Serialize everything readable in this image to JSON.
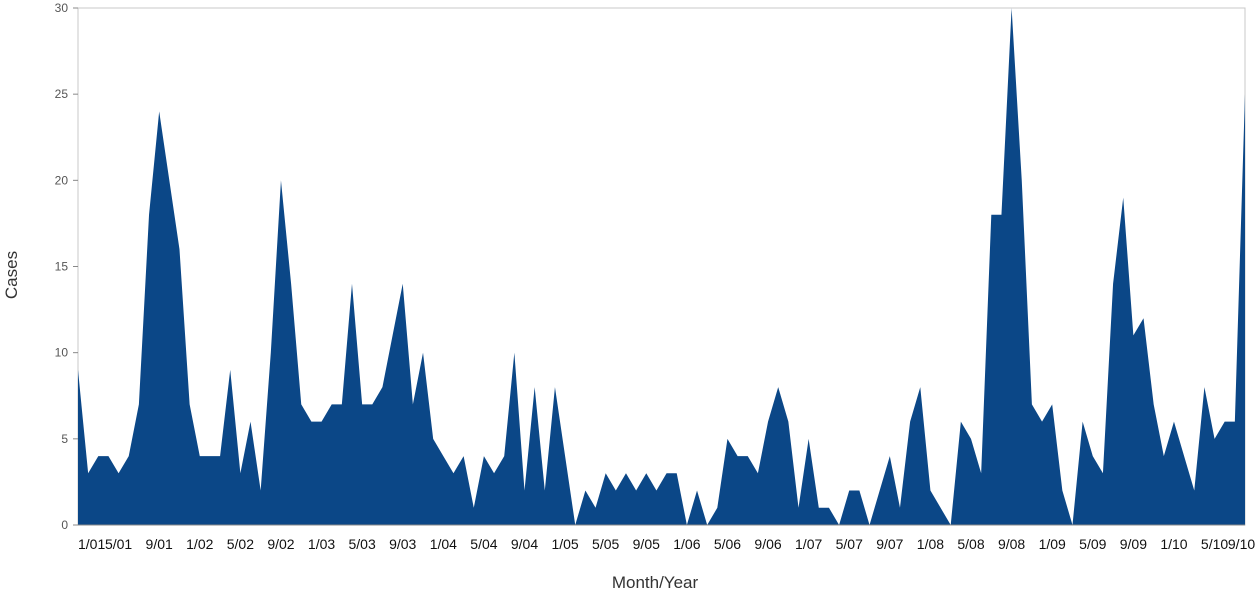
{
  "chart_data": {
    "type": "area",
    "xlabel": "Month/Year",
    "ylabel": "Cases",
    "ylim": [
      0,
      30
    ],
    "yticks": [
      0,
      5,
      10,
      15,
      20,
      25,
      30
    ],
    "x_tick_labels": [
      "1/01",
      "5/01",
      "9/01",
      "1/02",
      "5/02",
      "9/02",
      "1/03",
      "5/03",
      "9/03",
      "1/04",
      "5/04",
      "9/04",
      "1/05",
      "5/05",
      "9/05",
      "1/06",
      "5/06",
      "9/06",
      "1/07",
      "5/07",
      "9/07",
      "1/08",
      "5/08",
      "9/08",
      "1/09",
      "5/09",
      "9/09",
      "1/10",
      "5/10",
      "9/10"
    ],
    "color": "#0b4787",
    "grid": false,
    "series": [
      {
        "values": [
          9,
          3,
          4,
          4,
          3,
          4,
          7,
          18,
          24,
          20,
          16,
          7,
          4,
          4,
          4,
          9,
          3,
          6,
          2,
          10,
          20,
          14,
          7,
          6,
          6,
          7,
          7,
          14,
          7,
          7,
          8,
          11,
          14,
          7,
          10,
          5,
          4,
          3,
          4,
          1,
          4,
          3,
          4,
          10,
          2,
          8,
          2,
          8,
          4,
          0,
          2,
          1,
          3,
          2,
          3,
          2,
          3,
          2,
          3,
          3,
          0,
          2,
          0,
          1,
          5,
          4,
          4,
          3,
          6,
          8,
          6,
          1,
          5,
          1,
          1,
          0,
          2,
          2,
          0,
          2,
          4,
          1,
          6,
          8,
          2,
          1,
          0,
          6,
          5,
          3,
          18,
          18,
          30,
          20,
          7,
          6,
          7,
          2,
          0,
          6,
          4,
          3,
          14,
          19,
          11,
          12,
          7,
          4,
          6,
          4,
          2,
          8,
          5,
          6,
          6,
          25
        ]
      }
    ]
  }
}
